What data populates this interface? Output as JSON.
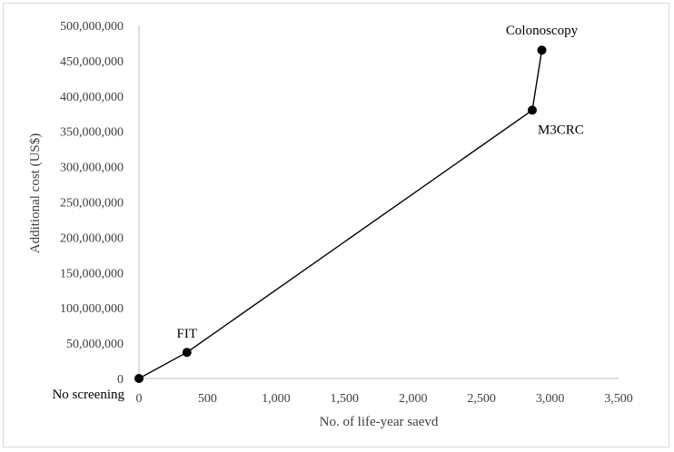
{
  "chart_data": {
    "type": "line",
    "title": "",
    "xlabel": "No. of life-year saevd",
    "ylabel": "Additional cost (US$)",
    "xlim": [
      0,
      3500
    ],
    "ylim": [
      0,
      500000000
    ],
    "x_ticks": [
      0,
      500,
      1000,
      1500,
      2000,
      2500,
      3000,
      3500
    ],
    "x_tick_labels": [
      "0",
      "500",
      "1,000",
      "1,500",
      "2,000",
      "2,500",
      "3,000",
      "3,500"
    ],
    "y_ticks": [
      0,
      50000000,
      100000000,
      150000000,
      200000000,
      250000000,
      300000000,
      350000000,
      400000000,
      450000000,
      500000000
    ],
    "y_tick_labels": [
      "0",
      "50,000,000",
      "100,000,000",
      "150,000,000",
      "200,000,000",
      "250,000,000",
      "300,000,000",
      "350,000,000",
      "400,000,000",
      "450,000,000",
      "500,000,000"
    ],
    "grid": false,
    "legend": "none",
    "series": [
      {
        "points": [
          {
            "label": "No screening",
            "x": 0,
            "y": 0
          },
          {
            "label": "FIT",
            "x": 350,
            "y": 37000000
          },
          {
            "label": "M3CRC",
            "x": 2870,
            "y": 380000000
          },
          {
            "label": "Colonoscopy",
            "x": 2940,
            "y": 465000000
          }
        ]
      }
    ],
    "colors": {
      "line": "#000000",
      "marker": "#000000",
      "axis": "#bfbfbf",
      "text": "#404040"
    }
  }
}
